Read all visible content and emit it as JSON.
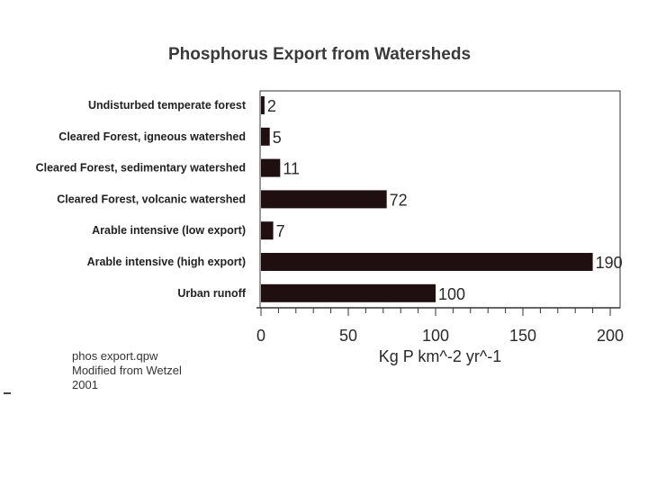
{
  "chart_data": {
    "type": "bar",
    "orientation": "horizontal",
    "title": "Phosphorus Export from Watersheds",
    "xlabel": "Kg P km^-2 yr^-1",
    "ylabel": "",
    "categories": [
      "Undisturbed temperate forest",
      "Cleared Forest, igneous watershed",
      "Cleared Forest, sedimentary watershed",
      "Cleared Forest, volcanic watershed",
      "Arable intensive (low export)",
      "Arable intensive (high export)",
      "Urban runoff"
    ],
    "values": [
      2,
      5,
      11,
      72,
      7,
      190,
      100
    ],
    "value_labels": [
      "2",
      "5",
      "11",
      "72",
      "7",
      "190",
      "100"
    ],
    "xlim": [
      0,
      200
    ],
    "xticks": [
      "0",
      "50",
      "100",
      "150",
      "200"
    ],
    "grid": false,
    "bar_color": "#1f0f10"
  },
  "caption": {
    "lines": [
      "phos export.qpw",
      "Modified from Wetzel",
      "2001"
    ]
  }
}
